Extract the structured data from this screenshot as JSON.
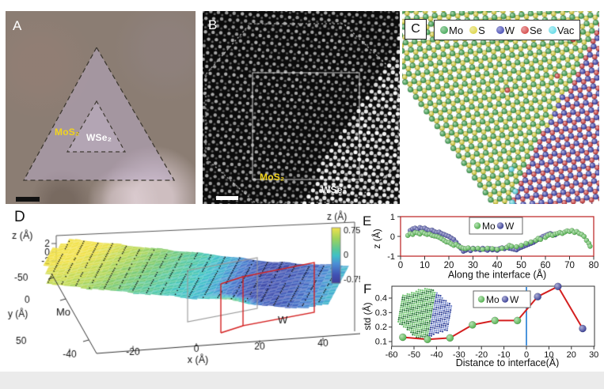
{
  "page_background": "#ffffff",
  "bottom_strip_color": "#ebebeb",
  "panels": {
    "A": {
      "label": "A",
      "type": "optical-micrograph",
      "region_labels": [
        {
          "text": "MoS₂",
          "color": "#f2d41c"
        },
        {
          "text": "WSe₂",
          "color": "#ffffff"
        }
      ],
      "scale_bar_color": "#111111",
      "triangle_outline_color": "#3f3a33"
    },
    "B": {
      "label": "B",
      "type": "stem-image",
      "region_labels": [
        {
          "text": "MoS₂",
          "color": "#f2d41c"
        },
        {
          "text": "WSe₂",
          "color": "#f5f5f5"
        }
      ],
      "scale_bar_color": "#ffffff"
    },
    "C": {
      "label": "C",
      "type": "atomic-model",
      "legend": [
        {
          "label": "Mo",
          "color": "#2f9e44"
        },
        {
          "label": "S",
          "color": "#d9d02f"
        },
        {
          "label": "W",
          "color": "#3036ad"
        },
        {
          "label": "Se",
          "color": "#d03030"
        },
        {
          "label": "Vac",
          "color": "#4fd6e4"
        }
      ]
    },
    "D": {
      "label": "D"
    },
    "E": {
      "label": "E"
    },
    "F": {
      "label": "F"
    }
  },
  "chart_data": [
    {
      "panel": "D",
      "type": "surface3d",
      "xlabel": "x (Å)",
      "ylabel": "y (Å)",
      "zlabel": "z (Å)",
      "xticks": [
        -40,
        -20,
        0,
        20,
        40
      ],
      "yticks": [
        -50,
        0,
        50
      ],
      "zticks": [
        2,
        0,
        -2
      ],
      "xlim": [
        -50,
        45
      ],
      "ylim": [
        -50,
        50
      ],
      "zlim": [
        -2,
        2
      ],
      "colorbar": {
        "label": "z (Å)",
        "ticks": [
          0.75,
          0,
          -0.75
        ],
        "lim": [
          -0.75,
          0.75
        ]
      },
      "annotations": [
        {
          "text": "Mo"
        },
        {
          "text": "W"
        }
      ],
      "highlight_box_colors": [
        "#999999",
        "#d42020"
      ],
      "height_profile": {
        "x": [
          -50,
          -42,
          -35,
          -28,
          -20,
          -12,
          -5,
          0,
          5,
          10,
          15,
          20,
          25,
          30,
          35,
          40,
          45
        ],
        "z": [
          0.78,
          0.72,
          0.6,
          0.45,
          0.3,
          0.18,
          0.08,
          0.0,
          -0.12,
          -0.3,
          -0.45,
          -0.55,
          -0.5,
          -0.45,
          -0.35,
          -0.2,
          -0.05
        ]
      }
    },
    {
      "panel": "E",
      "type": "scatter",
      "xlabel": "Along the interface (Å)",
      "ylabel": "z (Å)",
      "xlim": [
        0,
        80
      ],
      "ylim": [
        -1,
        1
      ],
      "xticks": [
        0,
        10,
        20,
        30,
        40,
        50,
        60,
        70,
        80
      ],
      "yticks": [
        1,
        0,
        -1
      ],
      "border_color": "#c03030",
      "legend": [
        {
          "label": "Mo",
          "color": "#4db848"
        },
        {
          "label": "W",
          "color": "#343a9b"
        }
      ],
      "series": [
        {
          "name": "Mo",
          "color": "#4db848",
          "points": [
            [
              3,
              0.05
            ],
            [
              4,
              0.15
            ],
            [
              5,
              0.1
            ],
            [
              6,
              0.2
            ],
            [
              7,
              0.18
            ],
            [
              8,
              0.12
            ],
            [
              9,
              0.22
            ],
            [
              10,
              0.15
            ],
            [
              11,
              0.1
            ],
            [
              12,
              0.12
            ],
            [
              13,
              0.05
            ],
            [
              14,
              0.02
            ],
            [
              15,
              0.0
            ],
            [
              16,
              -0.05
            ],
            [
              17,
              -0.12
            ],
            [
              18,
              -0.2
            ],
            [
              19,
              -0.28
            ],
            [
              20,
              -0.3
            ],
            [
              21,
              -0.38
            ],
            [
              22,
              -0.45
            ],
            [
              23,
              -0.4
            ],
            [
              24,
              -0.5
            ],
            [
              25,
              -0.55
            ],
            [
              26,
              -0.6
            ],
            [
              27,
              -0.62
            ],
            [
              28,
              -0.58
            ],
            [
              30,
              -0.62
            ],
            [
              32,
              -0.6
            ],
            [
              34,
              -0.65
            ],
            [
              36,
              -0.6
            ],
            [
              38,
              -0.62
            ],
            [
              40,
              -0.65
            ],
            [
              42,
              -0.6
            ],
            [
              44,
              -0.55
            ],
            [
              45,
              -0.45
            ],
            [
              46,
              -0.5
            ],
            [
              48,
              -0.52
            ],
            [
              50,
              -0.45
            ],
            [
              52,
              -0.35
            ],
            [
              54,
              -0.28
            ],
            [
              56,
              -0.2
            ],
            [
              57,
              -0.1
            ],
            [
              58,
              -0.15
            ],
            [
              60,
              -0.05
            ],
            [
              61,
              0.05
            ],
            [
              62,
              0.1
            ],
            [
              63,
              0.05
            ],
            [
              64,
              0.12
            ],
            [
              65,
              0.15
            ],
            [
              66,
              0.2
            ],
            [
              67,
              0.15
            ],
            [
              68,
              0.22
            ],
            [
              69,
              0.28
            ],
            [
              70,
              0.25
            ],
            [
              71,
              0.3
            ],
            [
              72,
              0.2
            ],
            [
              73,
              0.25
            ],
            [
              74,
              0.15
            ],
            [
              75,
              0.1
            ],
            [
              76,
              0.0
            ],
            [
              77,
              -0.2
            ],
            [
              78,
              -0.35
            ],
            [
              78.5,
              -0.5
            ]
          ]
        },
        {
          "name": "W",
          "color": "#343a9b",
          "points": [
            [
              4,
              0.3
            ],
            [
              5,
              0.38
            ],
            [
              6,
              0.42
            ],
            [
              7,
              0.35
            ],
            [
              8,
              0.45
            ],
            [
              9,
              0.4
            ],
            [
              10,
              0.42
            ],
            [
              11,
              0.35
            ],
            [
              12,
              0.3
            ],
            [
              13,
              0.32
            ],
            [
              14,
              0.25
            ],
            [
              15,
              0.2
            ],
            [
              16,
              0.22
            ],
            [
              17,
              0.15
            ],
            [
              18,
              0.1
            ],
            [
              19,
              0.05
            ],
            [
              20,
              0.0
            ],
            [
              21,
              -0.08
            ],
            [
              22,
              -0.15
            ],
            [
              23,
              -0.3
            ],
            [
              24,
              -0.45
            ],
            [
              25,
              -0.6
            ],
            [
              26,
              -0.75
            ],
            [
              27,
              -0.7
            ],
            [
              28,
              -0.65
            ],
            [
              29,
              -0.72
            ],
            [
              30,
              -0.6
            ],
            [
              31,
              -0.65
            ],
            [
              32,
              -0.62
            ],
            [
              33,
              -0.68
            ],
            [
              34,
              -0.6
            ],
            [
              35,
              -0.65
            ],
            [
              36,
              -0.7
            ],
            [
              37,
              -0.62
            ],
            [
              38,
              -0.68
            ],
            [
              39,
              -0.65
            ],
            [
              40,
              -0.7
            ],
            [
              41,
              -0.62
            ],
            [
              42,
              -0.58
            ],
            [
              43,
              -0.62
            ],
            [
              44,
              -0.55
            ],
            [
              45,
              -0.6
            ],
            [
              46,
              -0.62
            ],
            [
              47,
              -0.65
            ],
            [
              48,
              -0.68
            ],
            [
              49,
              -0.6
            ],
            [
              50,
              -0.55
            ],
            [
              51,
              -0.5
            ],
            [
              52,
              -0.45
            ],
            [
              53,
              -0.4
            ],
            [
              54,
              -0.35
            ],
            [
              55,
              -0.3
            ],
            [
              56,
              -0.22
            ],
            [
              57,
              -0.15
            ],
            [
              58,
              -0.08
            ],
            [
              59,
              0.0
            ],
            [
              60,
              0.05
            ],
            [
              61,
              0.1
            ],
            [
              62,
              0.15
            ],
            [
              63,
              0.1
            ],
            [
              64,
              0.08
            ]
          ]
        }
      ]
    },
    {
      "panel": "F",
      "type": "line",
      "xlabel": "Distance to interface(Å)",
      "ylabel": "std (Å)",
      "xlim": [
        -62,
        32
      ],
      "ylim": [
        0.08,
        0.48
      ],
      "xticks": [
        -60,
        -50,
        -40,
        -30,
        -20,
        -10,
        0,
        10,
        20,
        30
      ],
      "yticks": [
        0.1,
        0.2,
        0.3,
        0.4
      ],
      "line_color": "#d42020",
      "interface_line": {
        "x": 0,
        "color": "#1f7bd4"
      },
      "legend": [
        {
          "label": "Mo",
          "color": "#4db848"
        },
        {
          "label": "W",
          "color": "#343a9b"
        }
      ],
      "series": [
        {
          "name": "Mo",
          "color": "#4db848",
          "points": [
            [
              -55,
              0.13
            ],
            [
              -44,
              0.115
            ],
            [
              -34,
              0.125
            ],
            [
              -24,
              0.215
            ],
            [
              -14,
              0.245
            ],
            [
              -4,
              0.245
            ]
          ]
        },
        {
          "name": "W",
          "color": "#343a9b",
          "points": [
            [
              5,
              0.41
            ],
            [
              14,
              0.48
            ],
            [
              25,
              0.19
            ]
          ]
        }
      ]
    }
  ]
}
